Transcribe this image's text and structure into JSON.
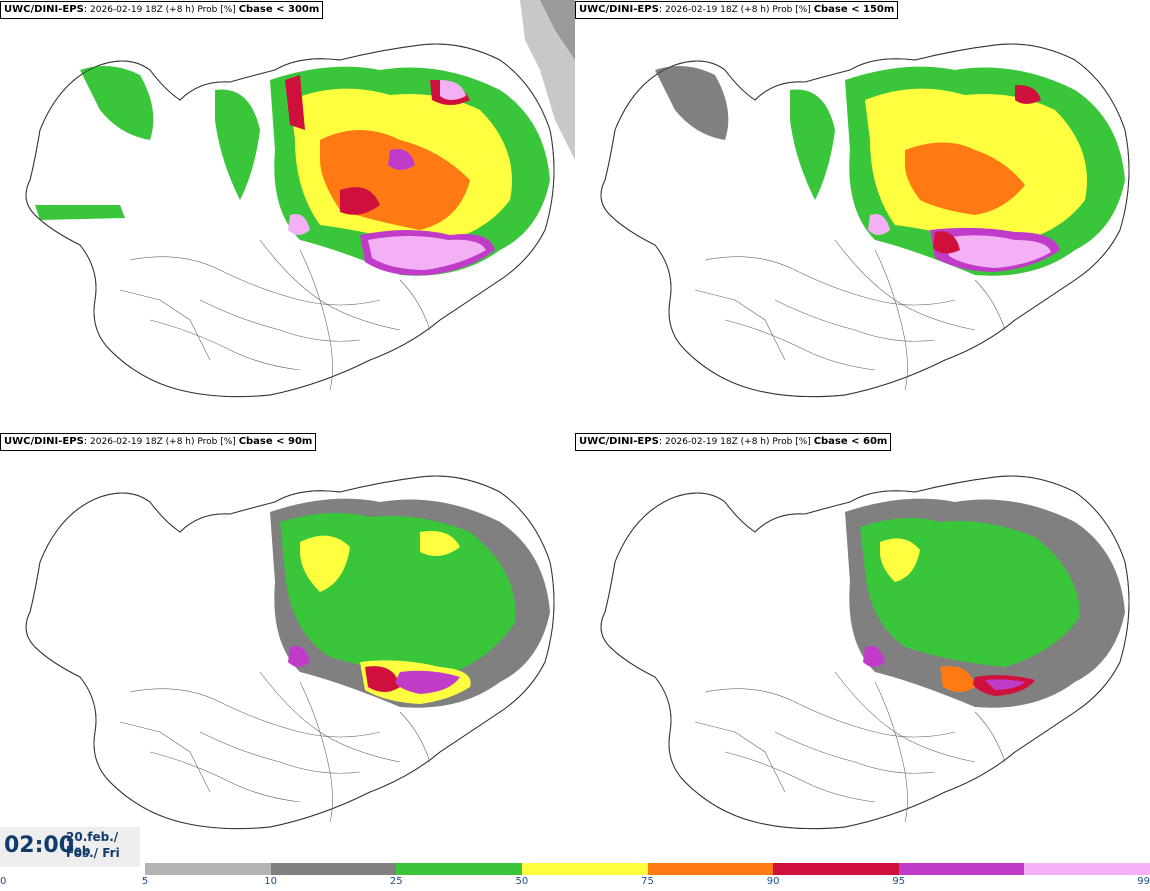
{
  "panels": [
    {
      "model": "UWC/DINI-EPS",
      "sep": ":",
      "run": "2026-02-19 18Z (+8 h) Prob [%]",
      "threshold": "Cbase < 300m"
    },
    {
      "model": "UWC/DINI-EPS",
      "sep": ":",
      "run": "2026-02-19 18Z (+8 h) Prob [%]",
      "threshold": "Cbase < 150m"
    },
    {
      "model": "UWC/DINI-EPS",
      "sep": ":",
      "run": "2026-02-19 18Z (+8 h) Prob [%]",
      "threshold": "Cbase < 90m"
    },
    {
      "model": "UWC/DINI-EPS",
      "sep": ":",
      "run": "2026-02-19 18Z (+8 h) Prob [%]",
      "threshold": "Cbase < 60m"
    }
  ],
  "valid_time": {
    "clock": "02:00",
    "date_line1": "20.feb./ Feb",
    "date_line2": "Fös./ Fri"
  },
  "legend": {
    "ticks": [
      "0",
      "5",
      "10",
      "25",
      "50",
      "75",
      "90",
      "95",
      "99"
    ],
    "colors": [
      "#b4b4b4",
      "#808080",
      "#3ac63a",
      "#ffff40",
      "#ff7a12",
      "#d0103c",
      "#c03cc8",
      "#f4b0f4"
    ]
  }
}
